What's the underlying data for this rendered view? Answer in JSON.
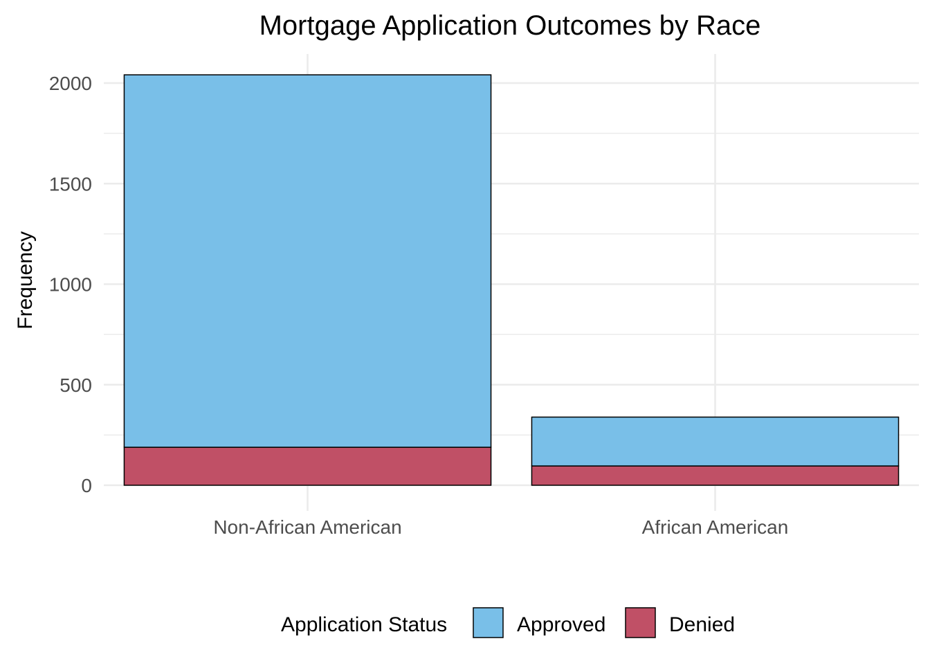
{
  "chart_data": {
    "type": "bar",
    "stacked": true,
    "title": "Mortgage Application Outcomes by Race",
    "xlabel": "",
    "ylabel": "Frequency",
    "categories": [
      "Non-African American",
      "African American"
    ],
    "series": [
      {
        "name": "Denied",
        "values": [
          189,
          96
        ],
        "color": "#c05066"
      },
      {
        "name": "Approved",
        "values": [
          1852,
          243
        ],
        "color": "#79bfe8"
      }
    ],
    "ylim": [
      0,
      2100
    ],
    "yticks": [
      0,
      500,
      1000,
      1500,
      2000
    ],
    "grid": true,
    "legend": {
      "title": "Application Status",
      "position": "bottom",
      "items": [
        "Approved",
        "Denied"
      ]
    }
  }
}
